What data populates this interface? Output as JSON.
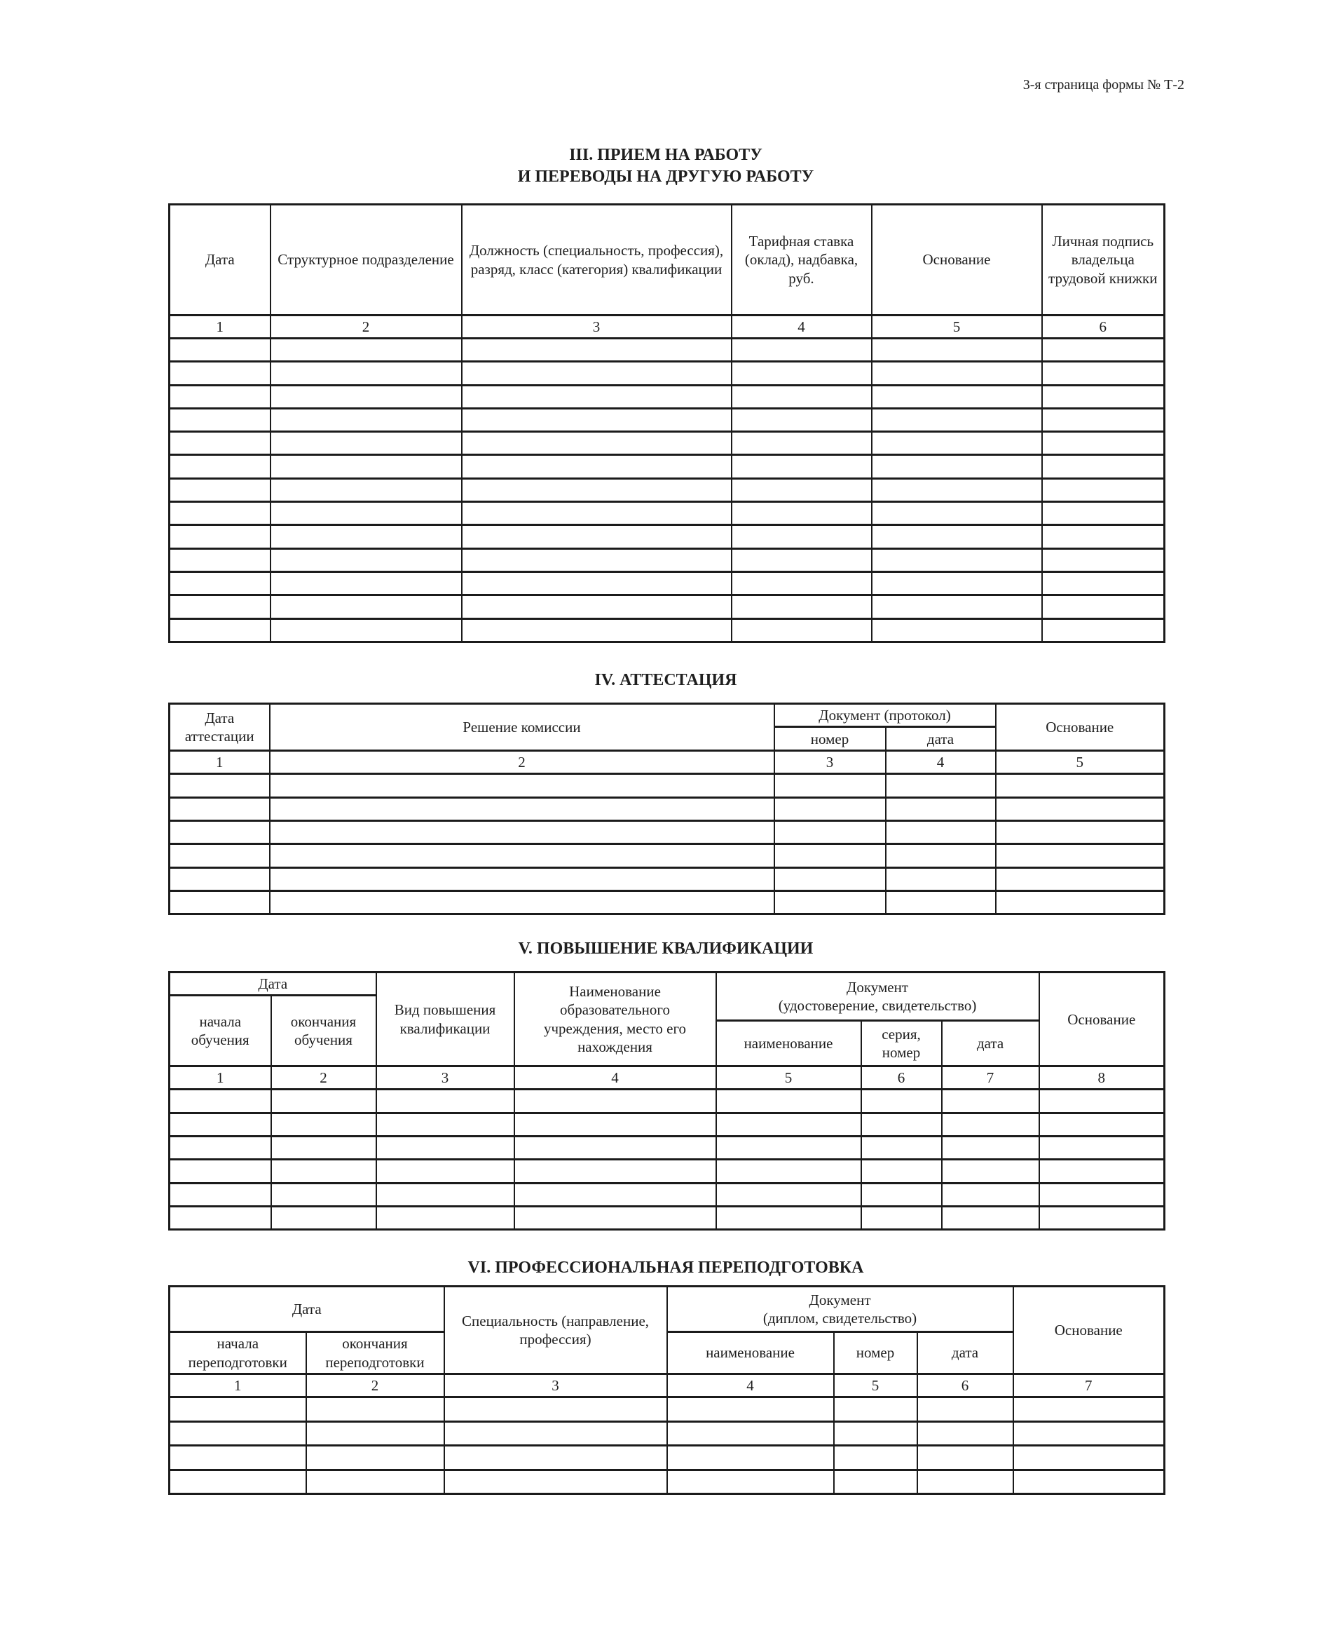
{
  "page": {
    "corner_note": "3-я страница формы № Т-2"
  },
  "colors": {
    "paper": "#ffffff",
    "ink": "#1f1f1f",
    "line": "#1b1b1b"
  },
  "section_3": {
    "title_line_1": "III. ПРИЕМ НА РАБОТУ",
    "title_line_2": "И ПЕРЕВОДЫ НА ДРУГУЮ РАБОТУ",
    "headers": {
      "date": "Дата",
      "unit": "Структурное подразделение",
      "position": "Должность (специальность, профессия), разряд, класс (категория) квалификации",
      "rate": "Тарифная ставка (оклад), надбавка, руб.",
      "basis": "Основание",
      "signature": "Личная подпись владельца трудовой книжки"
    },
    "column_numbers": [
      "1",
      "2",
      "3",
      "4",
      "5",
      "6"
    ],
    "empty_rows": 13
  },
  "section_4": {
    "title": "IV. АТТЕСТАЦИЯ",
    "headers": {
      "date": "Дата аттестации",
      "decision": "Решение комиссии",
      "document_group": "Документ (протокол)",
      "doc_number": "номер",
      "doc_date": "дата",
      "basis": "Основание"
    },
    "column_numbers": [
      "1",
      "2",
      "3",
      "4",
      "5"
    ],
    "empty_rows": 6
  },
  "section_5": {
    "title": "V. ПОВЫШЕНИЕ КВАЛИФИКАЦИИ",
    "headers": {
      "date_group": "Дата",
      "start": "начала обучения",
      "end": "окончания обучения",
      "kind": "Вид повышения квалификации",
      "institution": "Наименование образовательного учреждения, место его нахождения",
      "document_group_line_1": "Документ",
      "document_group_line_2": "(удостоверение, свидетельство)",
      "doc_name": "наименование",
      "doc_series": "серия, номер",
      "doc_date": "дата",
      "basis": "Основание"
    },
    "column_numbers": [
      "1",
      "2",
      "3",
      "4",
      "5",
      "6",
      "7",
      "8"
    ],
    "empty_rows": 6
  },
  "section_6": {
    "title": "VI. ПРОФЕССИОНАЛЬНАЯ ПЕРЕПОДГОТОВКА",
    "headers": {
      "date_group": "Дата",
      "start": "начала переподготовки",
      "end": "окончания переподготовки",
      "specialty": "Специальность (направление, профессия)",
      "document_group_line_1": "Документ",
      "document_group_line_2": "(диплом, свидетельство)",
      "doc_name": "наименование",
      "doc_number": "номер",
      "doc_date": "дата",
      "basis": "Основание"
    },
    "column_numbers": [
      "1",
      "2",
      "3",
      "4",
      "5",
      "6",
      "7"
    ],
    "empty_rows": 4
  }
}
